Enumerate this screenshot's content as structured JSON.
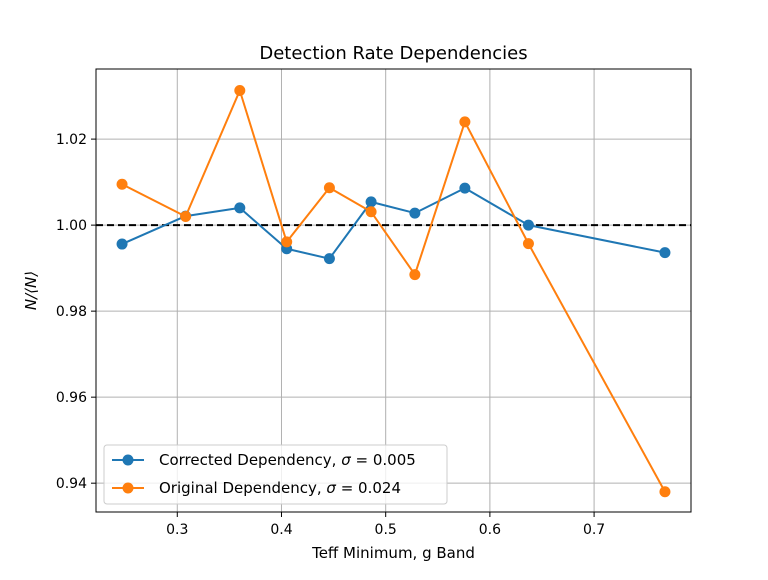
{
  "chart_data": {
    "type": "line",
    "title": "Detection Rate Dependencies",
    "xlabel": "Teff Minimum, g Band",
    "ylabel": "N/⟨N⟩",
    "xlim": [
      0.222,
      0.793
    ],
    "ylim": [
      0.9333,
      1.0363
    ],
    "x_ticks": [
      0.3,
      0.4,
      0.5,
      0.6,
      0.7
    ],
    "x_tick_labels": [
      "0.3",
      "0.4",
      "0.5",
      "0.6",
      "0.7"
    ],
    "y_ticks": [
      0.94,
      0.96,
      0.98,
      1.0,
      1.02
    ],
    "y_tick_labels": [
      "0.94",
      "0.96",
      "0.98",
      "1.00",
      "1.02"
    ],
    "grid": true,
    "reference_line": {
      "y": 1.0,
      "style": "dashed",
      "color": "#000000"
    },
    "legend_position": "lower-left",
    "series": [
      {
        "name": "Corrected Dependency, σ = 0.005",
        "name_prefix": "Corrected Dependency, ",
        "sigma_symbol": "σ",
        "sigma_value": " = 0.005",
        "color": "#1f77b4",
        "x": [
          0.247,
          0.308,
          0.36,
          0.405,
          0.446,
          0.486,
          0.528,
          0.576,
          0.637,
          0.768
        ],
        "y": [
          0.9956,
          1.0021,
          1.004,
          0.9945,
          0.9922,
          1.0054,
          1.0028,
          1.0086,
          1.0,
          0.9936
        ]
      },
      {
        "name": "Original Dependency, σ = 0.024",
        "name_prefix": "Original Dependency, ",
        "sigma_symbol": "σ",
        "sigma_value": " = 0.024",
        "color": "#ff7f0e",
        "x": [
          0.247,
          0.308,
          0.36,
          0.405,
          0.446,
          0.486,
          0.528,
          0.576,
          0.637,
          0.768
        ],
        "y": [
          1.0095,
          1.002,
          1.0313,
          0.9961,
          1.0087,
          1.0031,
          0.9885,
          1.024,
          0.9957,
          0.938
        ]
      }
    ]
  }
}
